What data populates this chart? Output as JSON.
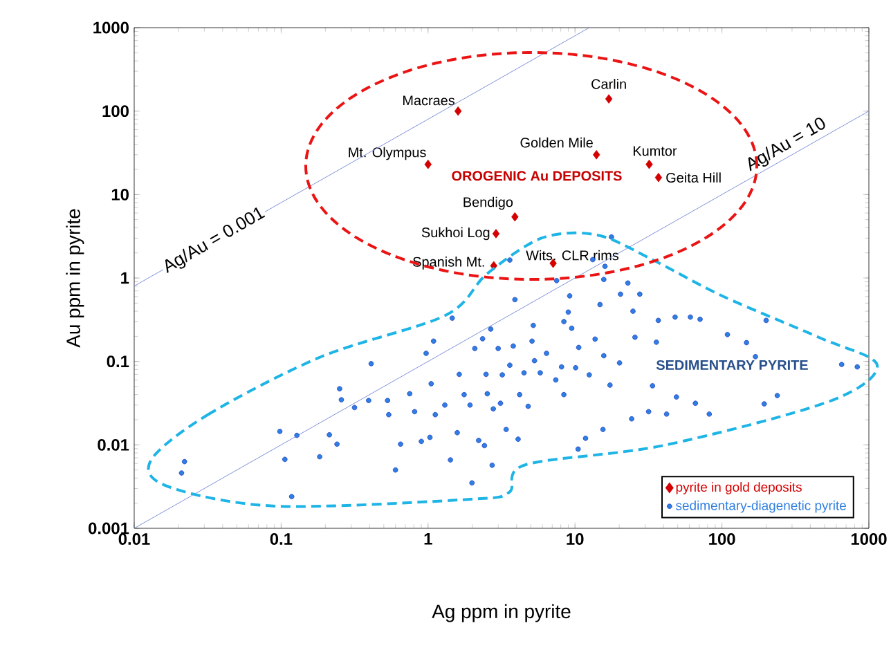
{
  "chart_data": {
    "type": "scatter",
    "xlabel": "Ag ppm in pyrite",
    "ylabel": "Au ppm in pyrite",
    "log": "xy",
    "xlim": [
      0.01,
      1000
    ],
    "ylim": [
      0.001,
      1000
    ],
    "xticks": [
      0.01,
      0.1,
      1,
      10,
      100,
      1000
    ],
    "yticks": [
      0.001,
      0.01,
      0.1,
      1,
      10,
      100,
      1000
    ],
    "legend": "bottom right",
    "series": [
      {
        "name": "pyrite in gold deposits",
        "color": "#d40000",
        "marker": "diamond",
        "x": [
          1.6,
          17,
          14,
          32,
          37,
          1.0,
          3.9,
          2.9,
          2.8,
          7.1
        ],
        "values": [
          100,
          140,
          30,
          23,
          16,
          23,
          5.4,
          3.4,
          1.4,
          1.5
        ],
        "value_labels": [
          "Macraes",
          "Carlin",
          "Golden Mile",
          "Kumtor",
          "Geita Hill",
          "Mt. Olympus",
          "Bendigo",
          "Sukhoi Log",
          "Spanish Mt.",
          "Wits. CLR rims"
        ]
      },
      {
        "name": "sedimentary-diagenetic pyrite",
        "color": "#2f7fe0",
        "marker": "circle",
        "x": [
          0.021,
          0.022,
          0.098,
          0.106,
          0.118,
          0.128,
          0.183,
          0.213,
          0.24,
          0.25,
          0.257,
          0.316,
          0.394,
          0.41,
          0.53,
          0.54,
          0.6,
          0.65,
          0.75,
          0.81,
          0.9,
          0.97,
          1.03,
          1.09,
          1.05,
          1.12,
          1.3,
          1.42,
          1.46,
          1.58,
          1.63,
          1.76,
          1.93,
          1.99,
          2.08,
          2.21,
          2.35,
          2.42,
          2.48,
          2.53,
          2.67,
          2.73,
          2.78,
          3.0,
          3.11,
          3.2,
          3.4,
          3.6,
          3.8,
          3.9,
          4.1,
          4.2,
          4.5,
          4.8,
          5.1,
          5.2,
          5.3,
          5.8,
          6.4,
          7.4,
          7.5,
          8.1,
          8.4,
          8.4,
          9.0,
          9.2,
          9.5,
          10.1,
          10.5,
          10.6,
          11.8,
          12.5,
          13.7,
          14.8,
          15.5,
          15.7,
          15.7,
          17.3,
          20.1,
          20.4,
          22.9,
          24.3,
          24.8,
          25.6,
          27.6,
          31.7,
          33.7,
          35.8,
          36.9,
          42,
          48,
          49,
          61,
          66,
          71,
          82,
          109,
          147,
          169,
          194,
          200,
          238,
          653,
          834,
          3.6,
          16,
          13.2,
          17.7
        ],
        "values": [
          0.0046,
          0.0063,
          0.0145,
          0.0067,
          0.0024,
          0.013,
          0.0072,
          0.0132,
          0.0102,
          0.047,
          0.0347,
          0.028,
          0.034,
          0.094,
          0.034,
          0.023,
          0.005,
          0.0102,
          0.041,
          0.025,
          0.011,
          0.125,
          0.0123,
          0.175,
          0.054,
          0.023,
          0.03,
          0.0066,
          0.33,
          0.014,
          0.07,
          0.04,
          0.03,
          0.0035,
          0.143,
          0.0113,
          0.187,
          0.0098,
          0.07,
          0.041,
          0.244,
          0.0057,
          0.027,
          0.143,
          0.0315,
          0.069,
          0.0153,
          0.09,
          0.153,
          0.55,
          0.0117,
          0.04,
          0.073,
          0.029,
          0.175,
          0.27,
          0.102,
          0.073,
          0.125,
          0.06,
          0.93,
          0.086,
          0.04,
          0.3,
          0.39,
          0.61,
          0.25,
          0.084,
          0.0089,
          0.147,
          0.012,
          0.069,
          0.185,
          0.48,
          0.0153,
          0.117,
          0.96,
          0.052,
          0.096,
          0.64,
          0.87,
          0.0205,
          0.4,
          0.195,
          0.64,
          0.025,
          0.051,
          0.17,
          0.31,
          0.0234,
          0.34,
          0.0375,
          0.34,
          0.0315,
          0.32,
          0.0234,
          0.21,
          0.168,
          0.114,
          0.031,
          0.31,
          0.039,
          0.092,
          0.086,
          1.64,
          1.38,
          1.66,
          3.1
        ]
      },
      {
        "type": "line",
        "color": "#8090d8",
        "marker": "none",
        "x": [
          0.01,
          12.5
        ],
        "values": [
          0.8,
          1000
        ]
      },
      {
        "type": "line",
        "color": "#8090d8",
        "marker": "none",
        "x": [
          0.01,
          1000
        ],
        "values": [
          0.001,
          100
        ]
      }
    ],
    "annotations": [
      {
        "text": "Ag/Au = 0.001",
        "x": 0.035,
        "y": 2.8
      },
      {
        "text": "Ag/Au = 10",
        "x": 300,
        "y": 30
      },
      "OROGENIC Au DEPOSITS",
      "SEDIMENTARY PYRITE"
    ]
  }
}
